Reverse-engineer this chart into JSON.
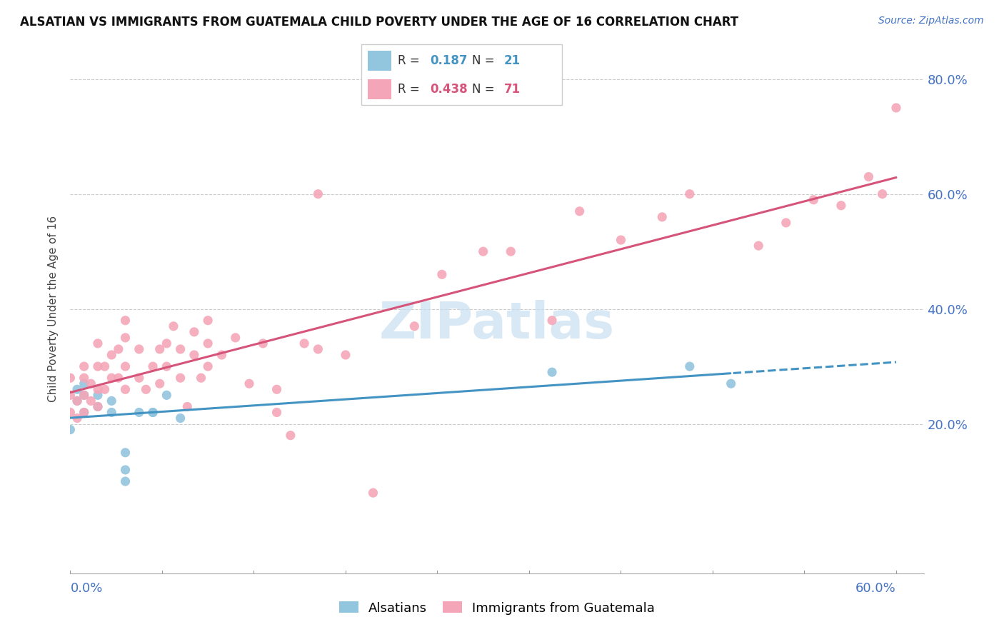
{
  "title": "ALSATIAN VS IMMIGRANTS FROM GUATEMALA CHILD POVERTY UNDER THE AGE OF 16 CORRELATION CHART",
  "source": "Source: ZipAtlas.com",
  "ylabel": "Child Poverty Under the Age of 16",
  "legend_label1": "Alsatians",
  "legend_label2": "Immigrants from Guatemala",
  "r1": "0.187",
  "n1": "21",
  "r2": "0.438",
  "n2": "71",
  "color_blue": "#92c5de",
  "color_pink": "#f4a6b8",
  "color_line_blue": "#4393c3",
  "color_line_pink": "#d6537a",
  "xlim": [
    0.0,
    0.62
  ],
  "ylim": [
    -0.06,
    0.86
  ],
  "ytick_vals": [
    0.2,
    0.4,
    0.6,
    0.8
  ],
  "ytick_labels": [
    "20.0%",
    "40.0%",
    "60.0%",
    "80.0%"
  ],
  "alsatian_x": [
    0.0,
    0.005,
    0.005,
    0.01,
    0.01,
    0.01,
    0.02,
    0.02,
    0.03,
    0.03,
    0.04,
    0.04,
    0.04,
    0.05,
    0.06,
    0.06,
    0.07,
    0.08,
    0.35,
    0.45,
    0.48
  ],
  "alsatian_y": [
    0.19,
    0.24,
    0.26,
    0.22,
    0.25,
    0.27,
    0.23,
    0.25,
    0.22,
    0.24,
    0.15,
    0.1,
    0.12,
    0.22,
    0.22,
    0.22,
    0.25,
    0.21,
    0.29,
    0.3,
    0.27
  ],
  "guatemala_x": [
    0.0,
    0.0,
    0.0,
    0.005,
    0.005,
    0.01,
    0.01,
    0.01,
    0.01,
    0.015,
    0.015,
    0.02,
    0.02,
    0.02,
    0.02,
    0.025,
    0.025,
    0.03,
    0.03,
    0.035,
    0.035,
    0.04,
    0.04,
    0.04,
    0.04,
    0.05,
    0.05,
    0.055,
    0.06,
    0.065,
    0.065,
    0.07,
    0.07,
    0.075,
    0.08,
    0.08,
    0.085,
    0.09,
    0.09,
    0.095,
    0.1,
    0.1,
    0.1,
    0.11,
    0.12,
    0.13,
    0.14,
    0.15,
    0.15,
    0.16,
    0.17,
    0.18,
    0.18,
    0.2,
    0.22,
    0.25,
    0.27,
    0.3,
    0.32,
    0.35,
    0.37,
    0.4,
    0.43,
    0.45,
    0.5,
    0.52,
    0.54,
    0.56,
    0.58,
    0.59,
    0.6
  ],
  "guatemala_y": [
    0.22,
    0.25,
    0.28,
    0.21,
    0.24,
    0.22,
    0.25,
    0.28,
    0.3,
    0.24,
    0.27,
    0.23,
    0.26,
    0.3,
    0.34,
    0.26,
    0.3,
    0.28,
    0.32,
    0.28,
    0.33,
    0.26,
    0.3,
    0.35,
    0.38,
    0.28,
    0.33,
    0.26,
    0.3,
    0.27,
    0.33,
    0.3,
    0.34,
    0.37,
    0.28,
    0.33,
    0.23,
    0.32,
    0.36,
    0.28,
    0.3,
    0.34,
    0.38,
    0.32,
    0.35,
    0.27,
    0.34,
    0.26,
    0.22,
    0.18,
    0.34,
    0.6,
    0.33,
    0.32,
    0.08,
    0.37,
    0.46,
    0.5,
    0.5,
    0.38,
    0.57,
    0.52,
    0.56,
    0.6,
    0.51,
    0.55,
    0.59,
    0.58,
    0.63,
    0.6,
    0.75
  ],
  "watermark": "ZIPatlas",
  "watermark_color": "#c8dff0"
}
